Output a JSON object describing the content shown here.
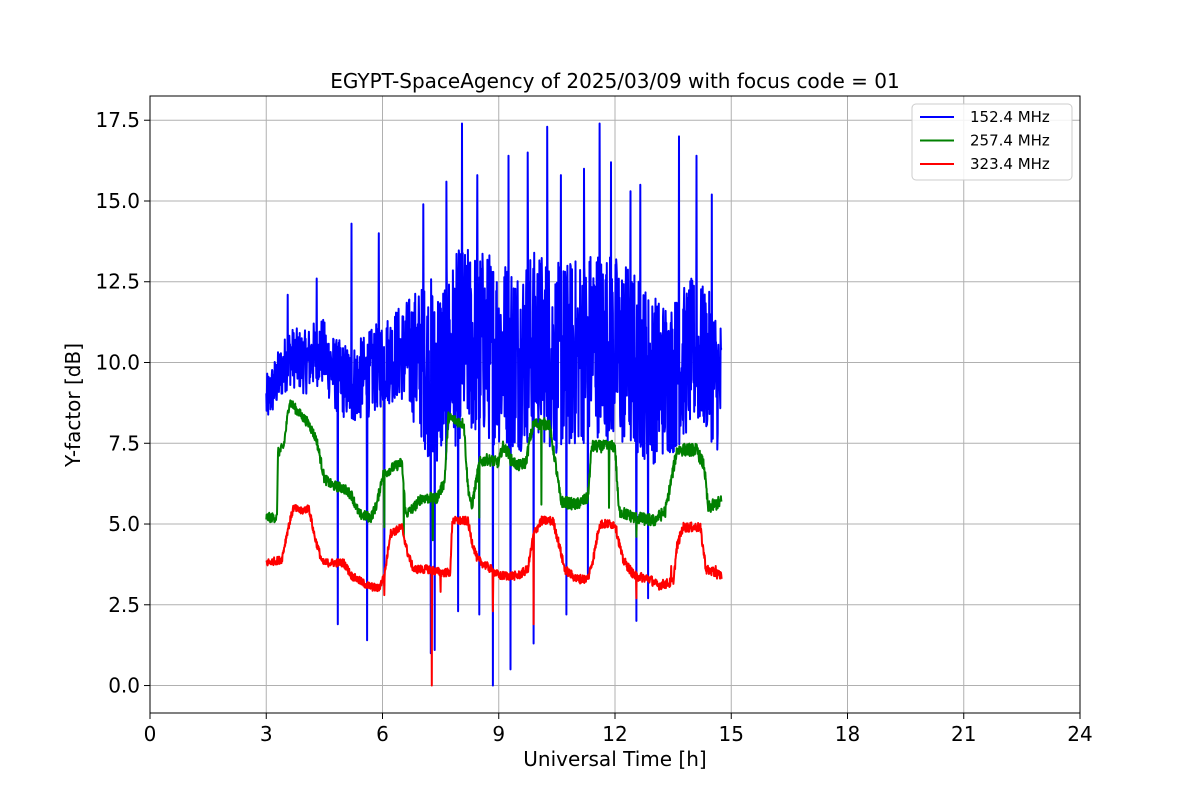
{
  "chart_data": {
    "type": "line",
    "title": "EGYPT-SpaceAgency of 2025/03/09 with focus code = 01",
    "xlabel": "Universal Time [h]",
    "ylabel": "Y-factor [dB]",
    "xlim": [
      0,
      24
    ],
    "ylim": [
      -0.85,
      18.25
    ],
    "xticks": [
      0,
      3,
      6,
      9,
      12,
      15,
      18,
      21,
      24
    ],
    "xtick_labels": [
      "0",
      "3",
      "6",
      "9",
      "12",
      "15",
      "18",
      "21",
      "24"
    ],
    "yticks": [
      0,
      2.5,
      5,
      7.5,
      10,
      12.5,
      15,
      17.5
    ],
    "ytick_labels": [
      "0.0",
      "2.5",
      "5.0",
      "7.5",
      "10.0",
      "12.5",
      "15.0",
      "17.5"
    ],
    "grid": true,
    "legend_position": "top-right",
    "series": [
      {
        "name": "152.4 MHz",
        "color": "#0000ff",
        "x_range": [
          3.0,
          14.75
        ],
        "baseline": [
          [
            3.0,
            8.8
          ],
          [
            3.3,
            9.5
          ],
          [
            3.6,
            10.2
          ],
          [
            4.0,
            10.0
          ],
          [
            4.4,
            10.4
          ],
          [
            4.8,
            9.6
          ],
          [
            5.2,
            9.3
          ],
          [
            5.6,
            9.6
          ],
          [
            6.0,
            10.0
          ],
          [
            6.4,
            10.3
          ],
          [
            6.8,
            10.2
          ],
          [
            7.2,
            9.8
          ],
          [
            7.6,
            9.8
          ],
          [
            8.0,
            10.6
          ],
          [
            8.5,
            10.6
          ],
          [
            9.0,
            10.4
          ],
          [
            9.5,
            10.2
          ],
          [
            10.0,
            10.6
          ],
          [
            10.5,
            10.1
          ],
          [
            11.0,
            10.3
          ],
          [
            11.5,
            10.7
          ],
          [
            12.0,
            10.4
          ],
          [
            12.5,
            10.0
          ],
          [
            13.0,
            9.5
          ],
          [
            13.5,
            9.6
          ],
          [
            14.0,
            10.3
          ],
          [
            14.4,
            10.0
          ],
          [
            14.75,
            9.2
          ]
        ],
        "noise": [
          [
            3.0,
            0.8
          ],
          [
            6.5,
            1.5
          ],
          [
            7.3,
            3.0
          ],
          [
            12.3,
            3.0
          ],
          [
            13.3,
            2.5
          ],
          [
            14.75,
            2.2
          ]
        ],
        "peaks": [
          [
            3.55,
            12.1
          ],
          [
            4.3,
            12.6
          ],
          [
            5.2,
            14.3
          ],
          [
            5.9,
            14.0
          ],
          [
            7.05,
            14.9
          ],
          [
            7.65,
            15.6
          ],
          [
            8.05,
            17.4
          ],
          [
            8.45,
            15.8
          ],
          [
            9.25,
            16.4
          ],
          [
            9.75,
            16.5
          ],
          [
            10.25,
            17.3
          ],
          [
            10.6,
            15.8
          ],
          [
            11.2,
            16.0
          ],
          [
            11.6,
            17.4
          ],
          [
            11.9,
            16.2
          ],
          [
            12.4,
            15.3
          ],
          [
            12.65,
            15.5
          ],
          [
            13.65,
            17.0
          ],
          [
            14.1,
            16.4
          ],
          [
            14.5,
            15.2
          ]
        ],
        "dips": [
          [
            4.85,
            1.9
          ],
          [
            5.6,
            1.4
          ],
          [
            6.05,
            3.1
          ],
          [
            7.25,
            1.0
          ],
          [
            7.35,
            1.1
          ],
          [
            7.95,
            2.3
          ],
          [
            8.5,
            2.2
          ],
          [
            8.85,
            0.0
          ],
          [
            9.3,
            0.5
          ],
          [
            9.9,
            1.3
          ],
          [
            10.75,
            2.2
          ],
          [
            11.3,
            3.3
          ],
          [
            12.55,
            2.0
          ],
          [
            12.85,
            2.7
          ]
        ]
      },
      {
        "name": "257.4 MHz",
        "color": "#008000",
        "x_range": [
          3.0,
          14.75
        ],
        "baseline": [
          [
            3.0,
            5.2
          ],
          [
            3.28,
            5.2
          ],
          [
            3.3,
            7.2
          ],
          [
            3.45,
            7.4
          ],
          [
            3.6,
            8.8
          ],
          [
            3.8,
            8.5
          ],
          [
            4.1,
            8.1
          ],
          [
            4.3,
            7.6
          ],
          [
            4.5,
            6.4
          ],
          [
            4.7,
            6.2
          ],
          [
            5.0,
            6.1
          ],
          [
            5.2,
            5.9
          ],
          [
            5.4,
            5.3
          ],
          [
            5.7,
            5.2
          ],
          [
            5.85,
            5.6
          ],
          [
            6.0,
            6.5
          ],
          [
            6.2,
            6.7
          ],
          [
            6.5,
            6.9
          ],
          [
            6.6,
            5.3
          ],
          [
            6.8,
            5.5
          ],
          [
            7.0,
            5.8
          ],
          [
            7.4,
            5.8
          ],
          [
            7.6,
            6.3
          ],
          [
            7.7,
            8.3
          ],
          [
            8.1,
            8.1
          ],
          [
            8.2,
            6.2
          ],
          [
            8.3,
            5.5
          ],
          [
            8.5,
            6.9
          ],
          [
            8.7,
            7.0
          ],
          [
            9.0,
            6.9
          ],
          [
            9.1,
            7.4
          ],
          [
            9.25,
            7.2
          ],
          [
            9.3,
            7.0
          ],
          [
            9.5,
            6.8
          ],
          [
            9.7,
            6.9
          ],
          [
            9.8,
            7.6
          ],
          [
            9.9,
            8.1
          ],
          [
            10.3,
            8.1
          ],
          [
            10.45,
            7.0
          ],
          [
            10.6,
            5.7
          ],
          [
            11.0,
            5.6
          ],
          [
            11.3,
            5.8
          ],
          [
            11.4,
            7.4
          ],
          [
            12.0,
            7.4
          ],
          [
            12.1,
            5.4
          ],
          [
            12.5,
            5.2
          ],
          [
            13.0,
            5.1
          ],
          [
            13.3,
            5.4
          ],
          [
            13.6,
            7.3
          ],
          [
            14.1,
            7.3
          ],
          [
            14.3,
            6.8
          ],
          [
            14.4,
            5.5
          ],
          [
            14.75,
            5.7
          ]
        ],
        "noise": [
          [
            3.0,
            0.15
          ],
          [
            14.75,
            0.2
          ]
        ],
        "peaks": [],
        "dips": [
          [
            6.05,
            4.9
          ],
          [
            6.55,
            4.6
          ],
          [
            7.3,
            4.5
          ],
          [
            8.5,
            5.2
          ],
          [
            10.1,
            5.6
          ],
          [
            11.85,
            5.5
          ],
          [
            12.55,
            4.6
          ]
        ]
      },
      {
        "name": "323.4 MHz",
        "color": "#ff0000",
        "x_range": [
          3.0,
          14.75
        ],
        "baseline": [
          [
            3.0,
            3.8
          ],
          [
            3.4,
            3.9
          ],
          [
            3.55,
            4.8
          ],
          [
            3.7,
            5.5
          ],
          [
            3.9,
            5.4
          ],
          [
            4.1,
            5.5
          ],
          [
            4.25,
            4.6
          ],
          [
            4.45,
            3.8
          ],
          [
            5.0,
            3.8
          ],
          [
            5.2,
            3.4
          ],
          [
            5.6,
            3.1
          ],
          [
            5.9,
            3.0
          ],
          [
            6.05,
            3.4
          ],
          [
            6.2,
            4.7
          ],
          [
            6.5,
            4.9
          ],
          [
            6.65,
            4.1
          ],
          [
            6.8,
            3.6
          ],
          [
            7.2,
            3.6
          ],
          [
            7.5,
            3.5
          ],
          [
            7.75,
            3.5
          ],
          [
            7.8,
            5.1
          ],
          [
            8.2,
            5.1
          ],
          [
            8.3,
            4.5
          ],
          [
            8.45,
            3.9
          ],
          [
            8.8,
            3.6
          ],
          [
            9.0,
            3.4
          ],
          [
            9.5,
            3.4
          ],
          [
            9.75,
            3.6
          ],
          [
            9.9,
            4.7
          ],
          [
            10.1,
            5.1
          ],
          [
            10.4,
            5.1
          ],
          [
            10.55,
            4.4
          ],
          [
            10.7,
            3.6
          ],
          [
            11.0,
            3.3
          ],
          [
            11.3,
            3.3
          ],
          [
            11.45,
            4.0
          ],
          [
            11.6,
            5.0
          ],
          [
            12.0,
            5.0
          ],
          [
            12.2,
            3.9
          ],
          [
            12.5,
            3.4
          ],
          [
            12.9,
            3.3
          ],
          [
            13.1,
            3.1
          ],
          [
            13.5,
            3.2
          ],
          [
            13.6,
            4.3
          ],
          [
            13.75,
            4.9
          ],
          [
            14.2,
            4.9
          ],
          [
            14.35,
            3.6
          ],
          [
            14.75,
            3.4
          ]
        ],
        "noise": [
          [
            3.0,
            0.12
          ],
          [
            14.75,
            0.15
          ]
        ],
        "peaks": [
          [
            13.45,
            3.7
          ],
          [
            14.6,
            3.7
          ]
        ],
        "dips": [
          [
            6.05,
            2.8
          ],
          [
            7.27,
            0.0
          ],
          [
            7.5,
            2.9
          ],
          [
            8.85,
            2.3
          ],
          [
            9.9,
            1.9
          ],
          [
            11.3,
            3.3
          ],
          [
            12.55,
            2.7
          ]
        ]
      }
    ]
  }
}
